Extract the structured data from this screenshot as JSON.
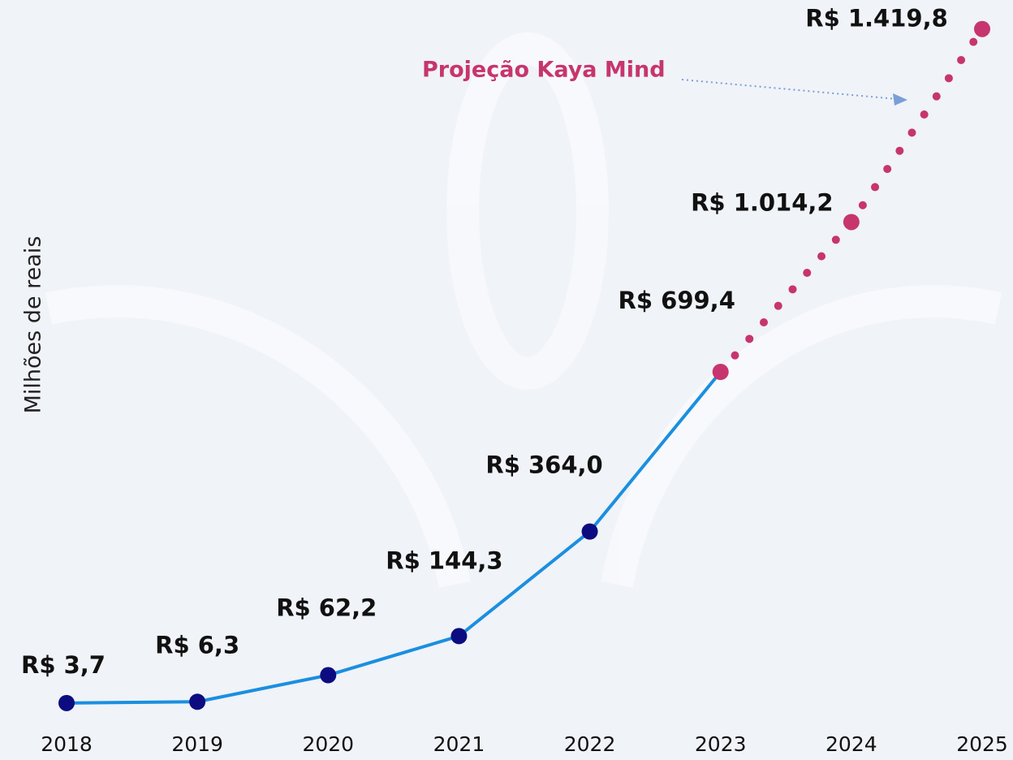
{
  "chart_data": {
    "type": "line",
    "y_label": "Milhões de reais",
    "annotation": "Projeção Kaya Mind",
    "categories": [
      "2018",
      "2019",
      "2020",
      "2021",
      "2022",
      "2023",
      "2024",
      "2025"
    ],
    "series": [
      {
        "color": "#1a8fe0",
        "marker_color": "#0c0c80",
        "style": "solid",
        "values": [
          3.7,
          6.3,
          62.2,
          144.3,
          364.0,
          699.4,
          null,
          null
        ],
        "value_labels": [
          "R$ 3,7",
          "R$ 6,3",
          "R$ 62,2",
          "R$ 144,3",
          "R$ 364,0",
          null,
          null,
          null
        ]
      },
      {
        "color": "#c7356e",
        "marker_color": "#c7356e",
        "style": "dotted",
        "values": [
          null,
          null,
          null,
          null,
          null,
          699.4,
          1014.2,
          1419.8
        ],
        "value_labels": [
          null,
          null,
          null,
          null,
          null,
          "R$ 699,4",
          "R$ 1.014,2",
          "R$ 1.419,8"
        ]
      }
    ],
    "ylim": [
      0,
      1450
    ]
  }
}
